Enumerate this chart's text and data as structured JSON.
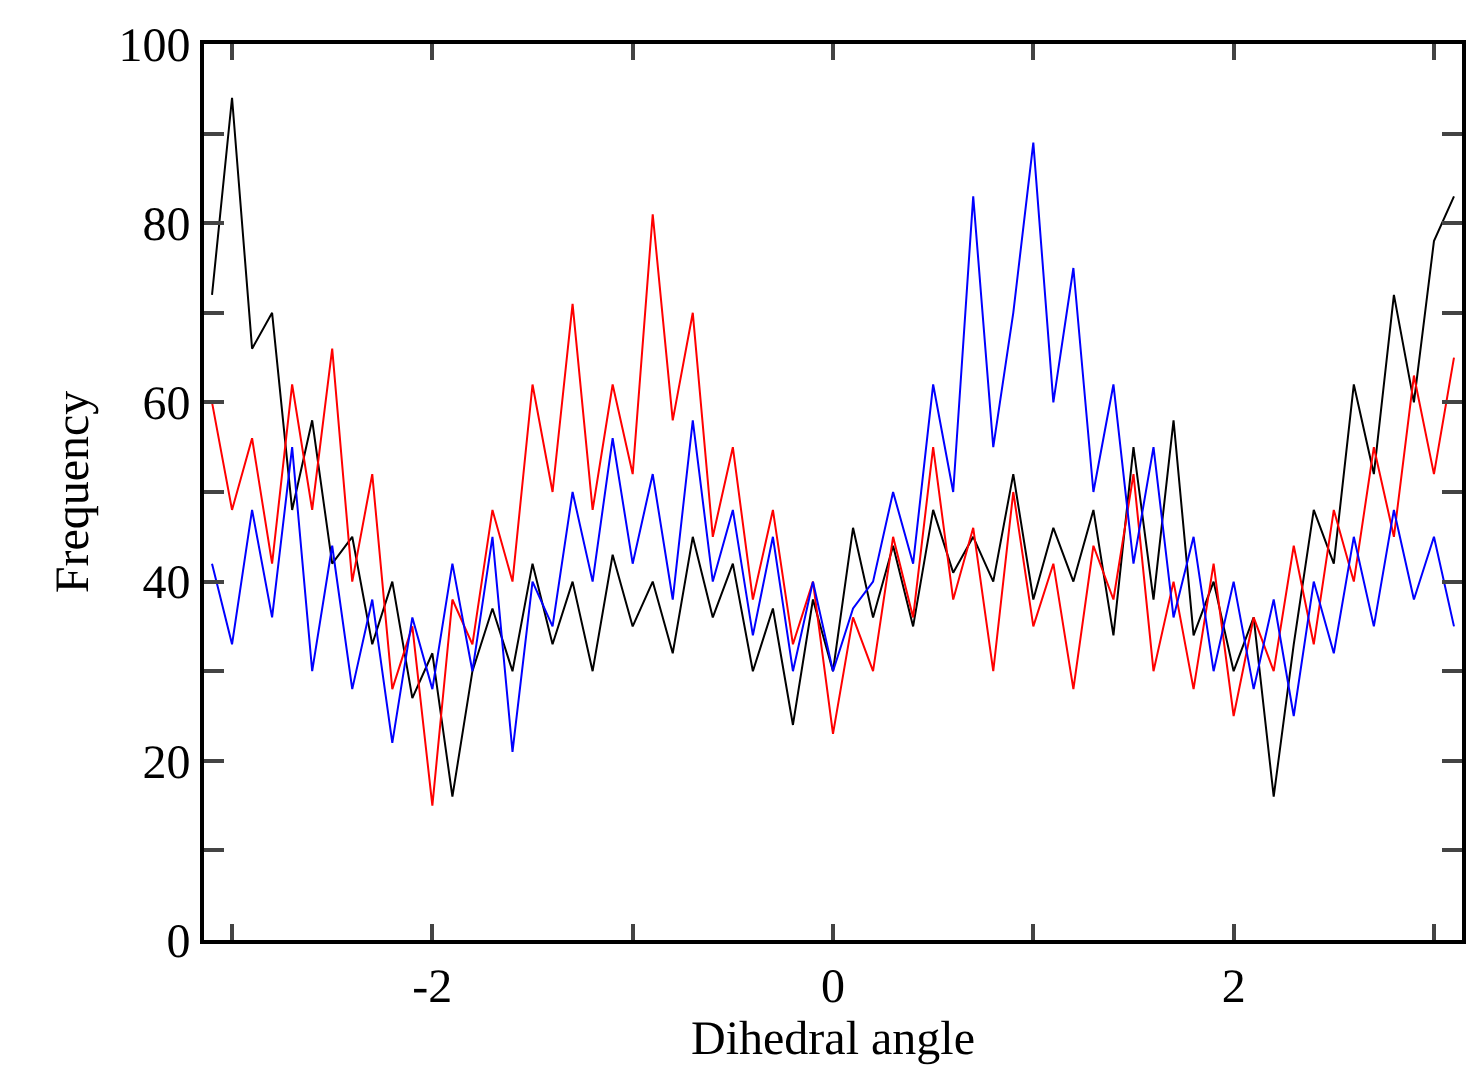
{
  "chart_data": {
    "type": "line",
    "xlabel": "Dihedral angle",
    "ylabel": "Frequency",
    "x": [
      -3.1,
      -3.0,
      -2.9,
      -2.8,
      -2.7,
      -2.6,
      -2.5,
      -2.4,
      -2.3,
      -2.2,
      -2.1,
      -2.0,
      -1.9,
      -1.8,
      -1.7,
      -1.6,
      -1.5,
      -1.4,
      -1.3,
      -1.2,
      -1.1,
      -1.0,
      -0.9,
      -0.8,
      -0.7,
      -0.6,
      -0.5,
      -0.4,
      -0.3,
      -0.2,
      -0.1,
      0.0,
      0.1,
      0.2,
      0.3,
      0.4,
      0.5,
      0.6,
      0.7,
      0.8,
      0.9,
      1.0,
      1.1,
      1.2,
      1.3,
      1.4,
      1.5,
      1.6,
      1.7,
      1.8,
      1.9,
      2.0,
      2.1,
      2.2,
      2.3,
      2.4,
      2.5,
      2.6,
      2.7,
      2.8,
      2.9,
      3.0,
      3.1
    ],
    "series": [
      {
        "color": "#000000",
        "values": [
          72,
          94,
          66,
          70,
          48,
          58,
          42,
          45,
          33,
          40,
          27,
          32,
          16,
          30,
          37,
          30,
          42,
          33,
          40,
          30,
          43,
          35,
          40,
          32,
          45,
          36,
          42,
          30,
          37,
          24,
          38,
          30,
          46,
          36,
          44,
          35,
          48,
          41,
          45,
          40,
          52,
          38,
          46,
          40,
          48,
          34,
          55,
          38,
          58,
          34,
          40,
          30,
          36,
          16,
          33,
          48,
          42,
          62,
          52,
          72,
          60,
          78,
          83
        ]
      },
      {
        "color": "#ff0000",
        "values": [
          60,
          48,
          56,
          42,
          62,
          48,
          66,
          40,
          52,
          28,
          35,
          15,
          38,
          33,
          48,
          40,
          62,
          50,
          71,
          48,
          62,
          52,
          81,
          58,
          70,
          45,
          55,
          38,
          48,
          33,
          40,
          23,
          36,
          30,
          45,
          36,
          55,
          38,
          46,
          30,
          50,
          35,
          42,
          28,
          44,
          38,
          52,
          30,
          40,
          28,
          42,
          25,
          36,
          30,
          44,
          33,
          48,
          40,
          55,
          45,
          63,
          52,
          65
        ]
      },
      {
        "color": "#0000ff",
        "values": [
          42,
          33,
          48,
          36,
          55,
          30,
          44,
          28,
          38,
          22,
          36,
          28,
          42,
          30,
          45,
          21,
          40,
          35,
          50,
          40,
          56,
          42,
          52,
          38,
          58,
          40,
          48,
          34,
          45,
          30,
          40,
          30,
          37,
          40,
          50,
          42,
          62,
          50,
          83,
          55,
          70,
          89,
          60,
          75,
          50,
          62,
          42,
          55,
          36,
          45,
          30,
          40,
          28,
          38,
          25,
          40,
          32,
          45,
          35,
          48,
          38,
          45,
          35
        ]
      }
    ],
    "xlim": [
      -3.14,
      3.14
    ],
    "xticks": [
      {
        "value": -3,
        "label": null
      },
      -2,
      {
        "value": -1,
        "label": null
      },
      0,
      {
        "value": 1,
        "label": null
      },
      2,
      {
        "value": 3,
        "label": null
      }
    ],
    "ylim": [
      0,
      100
    ],
    "yticks": [
      0,
      {
        "value": 10,
        "label": null
      },
      20,
      {
        "value": 30,
        "label": null
      },
      40,
      {
        "value": 50,
        "label": null
      },
      60,
      {
        "value": 70,
        "label": null
      },
      80,
      {
        "value": 90,
        "label": null
      },
      100
    ],
    "grid": false,
    "line_style": "solid",
    "marker": "none"
  }
}
